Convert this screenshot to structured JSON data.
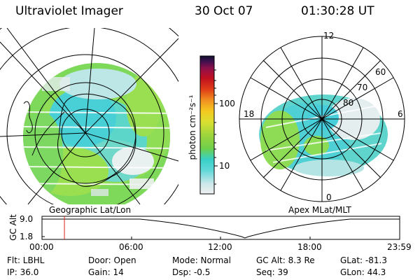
{
  "header": {
    "title": "Ultraviolet Imager",
    "date": "30 Oct 07",
    "time": "01:30:28 UT"
  },
  "left_map": {
    "label": "Geographic Lat/Lon"
  },
  "right_map": {
    "label": "Apex MLat/MLT",
    "mlt_labels": {
      "top": "12",
      "left": "18",
      "right": "6",
      "bottom": "0"
    },
    "lat_labels": [
      "60",
      "70",
      "80"
    ]
  },
  "colorbar": {
    "unit": "photon cm⁻²s⁻¹",
    "ticks": [
      "100",
      "10"
    ],
    "scale": "log",
    "colors": [
      "#f0f0f0",
      "#cfe8ea",
      "#62d8d8",
      "#38d0c8",
      "#6ed04a",
      "#a0d43c",
      "#d8e030",
      "#f5c820",
      "#f09020",
      "#e03c18",
      "#c01020",
      "#90104a",
      "#401050",
      "#101030"
    ]
  },
  "timeline": {
    "ylabel": "GC Alt",
    "y_ticks": [
      "9.0",
      "1.8"
    ],
    "x_ticks": [
      "00:00",
      "06:00",
      "12:00",
      "18:00",
      "23:59"
    ],
    "current_time_fraction": 0.0627
  },
  "info": {
    "flt": "Flt: LBHL",
    "ip": "IP: 36.0",
    "door": "Door: Open",
    "gain": "Gain: 14",
    "mode": "Mode: Normal",
    "dsp": "Dsp:    -0.5",
    "gcalt": "GC Alt: 8.3 Re",
    "seq": "Seq: 39",
    "glat": "GLat: -81.3",
    "glon": "GLon:  44.3"
  }
}
